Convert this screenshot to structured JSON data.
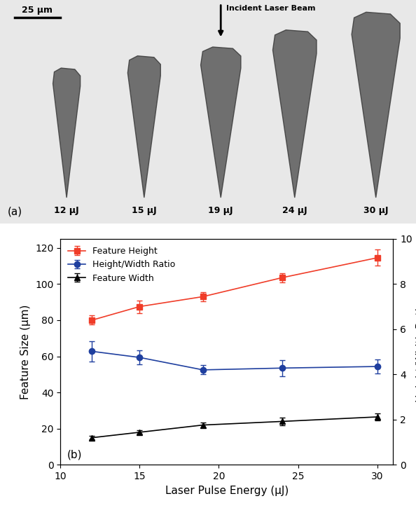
{
  "chart_data": {
    "type": "line",
    "x": [
      12,
      15,
      19,
      24,
      30
    ],
    "xlabel": "Laser Pulse Energy (μJ)",
    "ylabel": "Feature Size (μm)",
    "y2label": "Height/Width Ratio",
    "xlim": [
      10,
      31
    ],
    "xticks": [
      10,
      15,
      20,
      25,
      30
    ],
    "ylim": [
      0,
      125
    ],
    "yticks": [
      0,
      20,
      40,
      60,
      80,
      100,
      120
    ],
    "y2lim": [
      0,
      10
    ],
    "y2ticks": [
      0,
      2,
      4,
      6,
      8,
      10
    ],
    "legend": "upper left",
    "annotations": [
      "(b)"
    ],
    "series": [
      {
        "name": "Feature Height",
        "color": "#f03c28",
        "marker": "square",
        "line_style": "solid",
        "values": [
          80,
          87.5,
          93,
          103.5,
          114.5
        ],
        "errors": [
          2.5,
          3.5,
          2.5,
          2.5,
          4.5
        ]
      },
      {
        "name": "Height/Width Ratio",
        "color": "#1f3f9f",
        "marker": "circle",
        "line_style": "solid",
        "axis": "y2",
        "values": [
          5.02,
          4.75,
          4.2,
          4.28,
          4.35
        ],
        "errors": [
          0.45,
          0.3,
          0.2,
          0.35,
          0.3
        ]
      },
      {
        "name": "Feature Width",
        "color": "#000000",
        "marker": "triangle",
        "line_style": "solid",
        "values": [
          15,
          18,
          22,
          24,
          26.5
        ],
        "errors": [
          1,
          1,
          1.5,
          2,
          2
        ]
      }
    ]
  },
  "image_panel": {
    "panel_label": "(a)",
    "scale_bar": {
      "label": "25 μm",
      "value": 25
    },
    "beam_label": "Incident Laser Beam",
    "sample_labels": [
      "12 μJ",
      "15 μJ",
      "19 μJ",
      "24 μJ",
      "30 μJ"
    ]
  }
}
